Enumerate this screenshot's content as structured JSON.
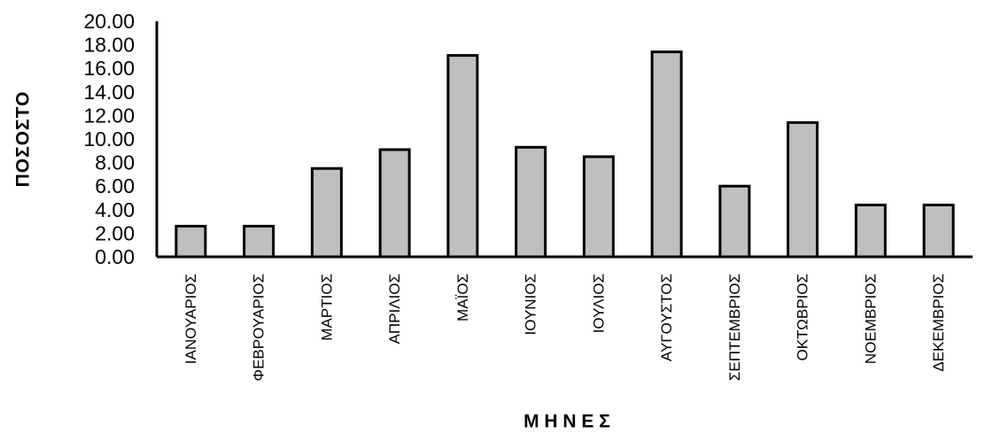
{
  "chart_data": {
    "type": "bar",
    "title": "",
    "xlabel": "Μ Η Ν Ε Σ",
    "ylabel": "ΠΟΣΟΣΤΟ",
    "ylim": [
      0,
      20
    ],
    "yticks": [
      "0.00",
      "2.00",
      "4.00",
      "6.00",
      "8.00",
      "10.00",
      "12.00",
      "14.00",
      "16.00",
      "18.00",
      "20.00"
    ],
    "grid": false,
    "legend": "none",
    "categories": [
      "ΙΑΝΟΥΑΡΙΟΣ",
      "ΦΕΒΡΟΥΑΡΙΟΣ",
      "ΜΑΡΤΙΟΣ",
      "ΑΠΡΙΛΙΟΣ",
      "ΜΑΪΟΣ",
      "ΙΟΥΝΙΟΣ",
      "ΙΟΥΛΙΟΣ",
      "ΑΥΓΟΥΣΤΟΣ",
      "ΣΕΠΤΕΜΒΡΙΟΣ",
      "ΟΚΤΩΒΡΙΟΣ",
      "ΝΟΕΜΒΡΙΟΣ",
      "ΔΕΚΕΜΒΡΙΟΣ"
    ],
    "values": [
      2.6,
      2.6,
      7.5,
      9.1,
      17.1,
      9.3,
      8.5,
      17.4,
      6.0,
      11.4,
      4.4,
      4.4
    ],
    "colors": {
      "bar_fill": "#bfbfbf",
      "bar_stroke": "#000000",
      "axis": "#000000"
    }
  }
}
